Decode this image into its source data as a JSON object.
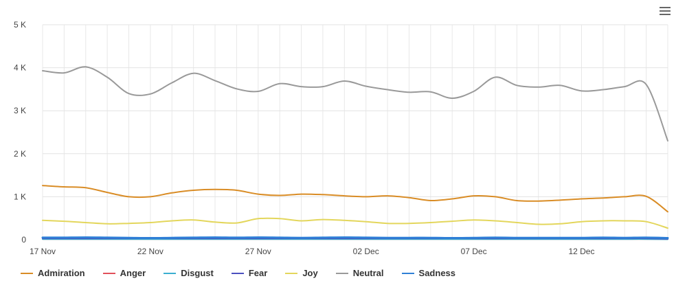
{
  "chart_data": {
    "type": "line",
    "title": "",
    "xlabel": "",
    "ylabel": "",
    "ylim": [
      0,
      5000
    ],
    "y_ticks": [
      {
        "value": 0,
        "label": "0"
      },
      {
        "value": 1000,
        "label": "1 K"
      },
      {
        "value": 2000,
        "label": "2 K"
      },
      {
        "value": 3000,
        "label": "3 K"
      },
      {
        "value": 4000,
        "label": "4 K"
      },
      {
        "value": 5000,
        "label": "5 K"
      }
    ],
    "x": [
      "17 Nov",
      "18 Nov",
      "19 Nov",
      "20 Nov",
      "21 Nov",
      "22 Nov",
      "23 Nov",
      "24 Nov",
      "25 Nov",
      "26 Nov",
      "27 Nov",
      "28 Nov",
      "29 Nov",
      "30 Nov",
      "01 Dec",
      "02 Dec",
      "03 Dec",
      "04 Dec",
      "05 Dec",
      "06 Dec",
      "07 Dec",
      "08 Dec",
      "09 Dec",
      "10 Dec",
      "11 Dec",
      "12 Dec",
      "13 Dec",
      "14 Dec",
      "15 Dec",
      "16 Dec"
    ],
    "x_tick_labels": [
      "17 Nov",
      "22 Nov",
      "27 Nov",
      "02 Dec",
      "07 Dec",
      "12 Dec"
    ],
    "grid": true,
    "legend_position": "bottom-left",
    "series": [
      {
        "name": "Admiration",
        "color": "#d98c25",
        "values": [
          1260,
          1230,
          1210,
          1100,
          1000,
          1000,
          1090,
          1150,
          1170,
          1150,
          1060,
          1030,
          1060,
          1050,
          1020,
          1000,
          1020,
          980,
          910,
          950,
          1020,
          1000,
          910,
          900,
          920,
          950,
          970,
          1000,
          1010,
          650
        ]
      },
      {
        "name": "Anger",
        "color": "#e14f5a",
        "values": [
          20,
          20,
          20,
          20,
          20,
          20,
          20,
          20,
          20,
          20,
          20,
          20,
          20,
          20,
          20,
          20,
          20,
          20,
          20,
          20,
          20,
          20,
          20,
          20,
          20,
          20,
          20,
          20,
          20,
          15
        ]
      },
      {
        "name": "Disgust",
        "color": "#3aaed0",
        "values": [
          15,
          15,
          15,
          15,
          15,
          15,
          15,
          15,
          15,
          15,
          15,
          15,
          15,
          15,
          15,
          15,
          15,
          15,
          15,
          15,
          15,
          15,
          15,
          15,
          15,
          15,
          15,
          15,
          15,
          10
        ]
      },
      {
        "name": "Fear",
        "color": "#4b4fbf",
        "values": [
          30,
          30,
          30,
          30,
          30,
          30,
          30,
          30,
          30,
          30,
          30,
          30,
          30,
          30,
          30,
          30,
          30,
          30,
          30,
          30,
          30,
          30,
          30,
          30,
          30,
          30,
          30,
          30,
          30,
          20
        ]
      },
      {
        "name": "Joy",
        "color": "#e3d65b",
        "values": [
          450,
          430,
          400,
          370,
          380,
          400,
          440,
          460,
          410,
          390,
          490,
          490,
          440,
          470,
          450,
          420,
          380,
          380,
          400,
          430,
          460,
          440,
          400,
          360,
          370,
          420,
          440,
          440,
          420,
          270
        ]
      },
      {
        "name": "Neutral",
        "color": "#999999",
        "values": [
          3930,
          3880,
          4020,
          3780,
          3400,
          3390,
          3650,
          3870,
          3700,
          3510,
          3450,
          3630,
          3560,
          3560,
          3690,
          3570,
          3490,
          3430,
          3440,
          3290,
          3450,
          3780,
          3590,
          3550,
          3590,
          3460,
          3490,
          3560,
          3610,
          2300
        ]
      },
      {
        "name": "Sadness",
        "color": "#2f7fd6",
        "values": [
          50,
          50,
          55,
          50,
          45,
          40,
          45,
          50,
          55,
          50,
          55,
          50,
          45,
          50,
          55,
          50,
          45,
          45,
          45,
          40,
          45,
          50,
          45,
          45,
          45,
          45,
          50,
          45,
          50,
          40
        ]
      }
    ]
  }
}
